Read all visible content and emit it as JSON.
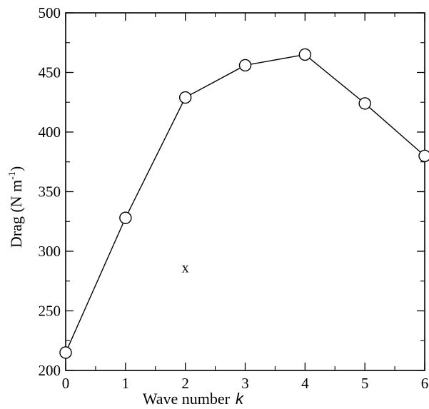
{
  "chart_data": {
    "type": "line",
    "title": "",
    "xlabel": "Wave number",
    "xlabel_symbol": "k",
    "ylabel": "Drag (N m",
    "ylabel_sup": "-1",
    "ylabel_close": ")",
    "xlim": [
      0,
      6
    ],
    "ylim": [
      200,
      500
    ],
    "xticks": [
      0,
      1,
      2,
      3,
      4,
      5,
      6
    ],
    "yticks": [
      200,
      250,
      300,
      350,
      400,
      450,
      500
    ],
    "grid": false,
    "legend": "none",
    "series": [
      {
        "x": [
          0,
          1,
          2,
          3,
          4,
          5,
          6
        ],
        "y": [
          215,
          328,
          429,
          456,
          465,
          424,
          380
        ],
        "marker": "open-circle",
        "color": "#000000"
      }
    ],
    "annotations": [
      {
        "text": "x",
        "x": 2,
        "y": 286
      }
    ]
  }
}
